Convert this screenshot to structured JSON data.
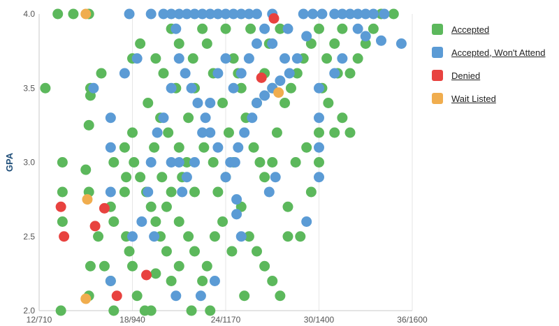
{
  "chart_data": {
    "type": "scatter",
    "title": "",
    "ylabel": "GPA",
    "xlabel": "",
    "x_ticks": [
      "12/710",
      "18/940",
      "24/1170",
      "30/1400",
      "36/1600"
    ],
    "y_ticks": [
      "2.0",
      "2.5",
      "3.0",
      "3.5",
      "4.0"
    ],
    "xlim": [
      12,
      36
    ],
    "ylim": [
      2.0,
      4.0
    ],
    "grid": "vertical",
    "legend_position": "right",
    "series": [
      {
        "name": "Accepted",
        "color": "#5cb85c",
        "points": [
          [
            12.4,
            3.5
          ],
          [
            13.2,
            4.0
          ],
          [
            14.2,
            4.0
          ],
          [
            15.2,
            4.0
          ],
          [
            15.3,
            3.5
          ],
          [
            16.0,
            3.6
          ],
          [
            15.3,
            3.45
          ],
          [
            15.2,
            3.25
          ],
          [
            13.5,
            3.0
          ],
          [
            13.5,
            2.8
          ],
          [
            13.5,
            2.6
          ],
          [
            15.0,
            2.95
          ],
          [
            15.2,
            2.8
          ],
          [
            16.6,
            2.7
          ],
          [
            16.8,
            2.6
          ],
          [
            15.8,
            2.5
          ],
          [
            15.3,
            2.3
          ],
          [
            16.2,
            2.3
          ],
          [
            16.6,
            2.2
          ],
          [
            16.8,
            2.0
          ],
          [
            13.4,
            2.0
          ],
          [
            15.2,
            2.1
          ],
          [
            17.6,
            2.5
          ],
          [
            17.8,
            2.4
          ],
          [
            18.0,
            2.3
          ],
          [
            18.3,
            2.1
          ],
          [
            18.8,
            2.0
          ],
          [
            19.2,
            2.0
          ],
          [
            17.5,
            3.1
          ],
          [
            18.0,
            3.2
          ],
          [
            18.1,
            3.0
          ],
          [
            18.5,
            2.9
          ],
          [
            17.6,
            2.9
          ],
          [
            18.9,
            2.8
          ],
          [
            19.2,
            2.7
          ],
          [
            19.5,
            2.6
          ],
          [
            19.8,
            2.5
          ],
          [
            20.2,
            2.4
          ],
          [
            20.5,
            2.2
          ],
          [
            21.0,
            2.3
          ],
          [
            18.5,
            3.8
          ],
          [
            18.0,
            3.7
          ],
          [
            19.5,
            3.7
          ],
          [
            20.0,
            3.6
          ],
          [
            20.5,
            3.9
          ],
          [
            21.0,
            3.8
          ],
          [
            19.0,
            3.4
          ],
          [
            19.8,
            3.3
          ],
          [
            20.3,
            3.2
          ],
          [
            21.0,
            3.1
          ],
          [
            21.5,
            3.0
          ],
          [
            21.2,
            2.9
          ],
          [
            20.5,
            2.8
          ],
          [
            20.2,
            2.7
          ],
          [
            21.0,
            2.6
          ],
          [
            21.6,
            2.5
          ],
          [
            22.0,
            2.4
          ],
          [
            22.5,
            2.2
          ],
          [
            23.0,
            2.0
          ],
          [
            22.8,
            2.3
          ],
          [
            23.3,
            2.5
          ],
          [
            23.8,
            2.6
          ],
          [
            23.5,
            2.8
          ],
          [
            24.0,
            2.9
          ],
          [
            24.5,
            3.0
          ],
          [
            24.2,
            3.2
          ],
          [
            23.8,
            3.4
          ],
          [
            23.2,
            3.6
          ],
          [
            22.8,
            3.8
          ],
          [
            22.5,
            3.9
          ],
          [
            24.0,
            3.9
          ],
          [
            24.5,
            3.7
          ],
          [
            25.0,
            3.5
          ],
          [
            25.3,
            3.3
          ],
          [
            25.8,
            3.1
          ],
          [
            26.2,
            3.0
          ],
          [
            26.5,
            2.9
          ],
          [
            27.0,
            3.0
          ],
          [
            25.5,
            2.5
          ],
          [
            26.0,
            2.4
          ],
          [
            26.5,
            2.3
          ],
          [
            27.0,
            2.2
          ],
          [
            27.5,
            2.1
          ],
          [
            28.0,
            2.5
          ],
          [
            28.8,
            2.5
          ],
          [
            25.0,
            2.7
          ],
          [
            25.2,
            2.1
          ],
          [
            28.5,
            3.0
          ],
          [
            29.2,
            3.1
          ],
          [
            30.0,
            3.2
          ],
          [
            31.0,
            3.2
          ],
          [
            31.5,
            3.3
          ],
          [
            32.0,
            3.2
          ],
          [
            30.0,
            3.0
          ],
          [
            29.5,
            2.8
          ],
          [
            28.0,
            2.7
          ],
          [
            27.3,
            3.2
          ],
          [
            27.8,
            3.4
          ],
          [
            28.2,
            3.5
          ],
          [
            28.6,
            3.6
          ],
          [
            29.0,
            3.7
          ],
          [
            29.5,
            3.8
          ],
          [
            30.0,
            3.9
          ],
          [
            30.5,
            3.7
          ],
          [
            31.0,
            3.8
          ],
          [
            31.5,
            3.9
          ],
          [
            32.0,
            3.6
          ],
          [
            32.5,
            3.7
          ],
          [
            33.0,
            3.8
          ],
          [
            33.5,
            3.9
          ],
          [
            34.0,
            4.0
          ],
          [
            34.8,
            4.0
          ],
          [
            30.2,
            3.5
          ],
          [
            30.6,
            3.4
          ],
          [
            31.2,
            3.6
          ],
          [
            27.5,
            3.9
          ],
          [
            26.8,
            3.8
          ],
          [
            26.5,
            3.6
          ],
          [
            22.0,
            3.5
          ],
          [
            21.6,
            3.3
          ],
          [
            22.6,
            3.1
          ],
          [
            23.2,
            3.0
          ],
          [
            19.4,
            3.1
          ],
          [
            19.9,
            2.9
          ],
          [
            22.0,
            2.8
          ],
          [
            24.8,
            3.6
          ],
          [
            26.0,
            3.4
          ],
          [
            24.4,
            2.4
          ],
          [
            21.8,
            2.0
          ],
          [
            17.5,
            2.8
          ],
          [
            16.8,
            3.0
          ],
          [
            19.5,
            2.25
          ],
          [
            20.8,
            3.5
          ],
          [
            21.9,
            3.7
          ],
          [
            25.6,
            3.9
          ],
          [
            27.0,
            3.5
          ]
        ]
      },
      {
        "name": "Accepted, Won't Attend",
        "color": "#5b9bd5",
        "points": [
          [
            17.8,
            4.0
          ],
          [
            19.2,
            4.0
          ],
          [
            20.0,
            4.0
          ],
          [
            20.5,
            4.0
          ],
          [
            21.0,
            4.0
          ],
          [
            21.5,
            4.0
          ],
          [
            22.0,
            4.0
          ],
          [
            22.5,
            4.0
          ],
          [
            23.0,
            4.0
          ],
          [
            23.5,
            4.0
          ],
          [
            24.0,
            4.0
          ],
          [
            24.5,
            4.0
          ],
          [
            25.0,
            4.0
          ],
          [
            25.5,
            4.0
          ],
          [
            26.0,
            4.0
          ],
          [
            27.0,
            4.0
          ],
          [
            29.0,
            4.0
          ],
          [
            29.6,
            4.0
          ],
          [
            30.2,
            4.0
          ],
          [
            31.0,
            4.0
          ],
          [
            31.5,
            4.0
          ],
          [
            32.0,
            4.0
          ],
          [
            32.5,
            4.0
          ],
          [
            33.0,
            4.0
          ],
          [
            33.5,
            4.0
          ],
          [
            34.2,
            4.0
          ],
          [
            35.3,
            3.8
          ],
          [
            34.0,
            3.82
          ],
          [
            33.0,
            3.85
          ],
          [
            32.5,
            3.9
          ],
          [
            31.5,
            3.7
          ],
          [
            31.0,
            3.6
          ],
          [
            29.2,
            3.85
          ],
          [
            28.6,
            3.7
          ],
          [
            28.1,
            3.6
          ],
          [
            27.5,
            3.55
          ],
          [
            27.0,
            3.5
          ],
          [
            26.5,
            3.45
          ],
          [
            26.0,
            3.4
          ],
          [
            25.7,
            3.3
          ],
          [
            25.2,
            3.2
          ],
          [
            24.8,
            3.1
          ],
          [
            24.3,
            3.0
          ],
          [
            24.0,
            2.9
          ],
          [
            23.5,
            3.1
          ],
          [
            23.0,
            3.2
          ],
          [
            22.7,
            3.3
          ],
          [
            22.2,
            3.4
          ],
          [
            21.8,
            3.5
          ],
          [
            21.4,
            3.6
          ],
          [
            21.0,
            3.7
          ],
          [
            20.5,
            3.5
          ],
          [
            20.0,
            3.3
          ],
          [
            19.6,
            3.2
          ],
          [
            19.2,
            3.0
          ],
          [
            19.0,
            2.8
          ],
          [
            18.6,
            2.6
          ],
          [
            19.4,
            2.5
          ],
          [
            20.5,
            3.0
          ],
          [
            21.0,
            3.0
          ],
          [
            21.2,
            2.8
          ],
          [
            21.5,
            2.9
          ],
          [
            22.0,
            3.0
          ],
          [
            22.5,
            3.2
          ],
          [
            23.0,
            3.4
          ],
          [
            23.5,
            3.6
          ],
          [
            24.0,
            3.7
          ],
          [
            24.5,
            3.5
          ],
          [
            25.0,
            3.6
          ],
          [
            25.5,
            3.7
          ],
          [
            26.0,
            3.8
          ],
          [
            26.5,
            3.9
          ],
          [
            27.0,
            3.8
          ],
          [
            28.0,
            3.9
          ],
          [
            27.8,
            3.7
          ],
          [
            27.2,
            2.9
          ],
          [
            26.8,
            2.8
          ],
          [
            30.0,
            2.9
          ],
          [
            30.0,
            3.3
          ],
          [
            29.2,
            2.6
          ],
          [
            30.0,
            3.1
          ],
          [
            30.0,
            3.5
          ],
          [
            25.0,
            2.5
          ],
          [
            24.7,
            2.75
          ],
          [
            24.7,
            2.65
          ],
          [
            23.3,
            2.2
          ],
          [
            22.4,
            2.1
          ],
          [
            20.8,
            2.1
          ],
          [
            16.6,
            2.2
          ],
          [
            16.6,
            2.8
          ],
          [
            16.6,
            3.3
          ],
          [
            16.6,
            3.1
          ],
          [
            17.5,
            3.6
          ],
          [
            15.5,
            3.5
          ],
          [
            18.0,
            2.5
          ],
          [
            18.3,
            3.7
          ],
          [
            20.8,
            3.9
          ],
          [
            24.6,
            3.0
          ]
        ]
      },
      {
        "name": "Denied",
        "color": "#e8423f",
        "points": [
          [
            13.4,
            2.7
          ],
          [
            13.6,
            2.5
          ],
          [
            15.6,
            2.57
          ],
          [
            16.2,
            2.69
          ],
          [
            17.0,
            2.1
          ],
          [
            18.9,
            2.24
          ],
          [
            26.3,
            3.57
          ],
          [
            27.1,
            3.97
          ]
        ]
      },
      {
        "name": "Wait Listed",
        "color": "#f0ad4e",
        "points": [
          [
            15.0,
            4.0
          ],
          [
            15.1,
            2.75
          ],
          [
            15.0,
            2.08
          ],
          [
            27.4,
            3.47
          ]
        ]
      }
    ]
  }
}
